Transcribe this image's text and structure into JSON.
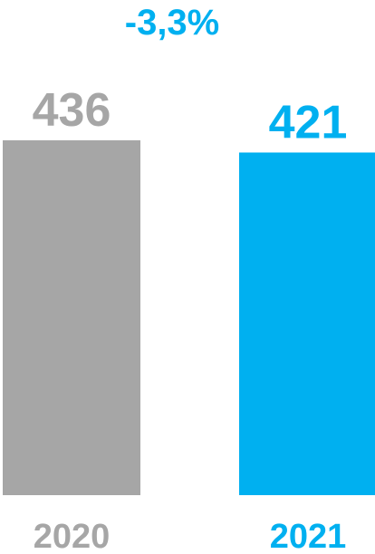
{
  "chart_data": {
    "type": "bar",
    "categories": [
      "2020",
      "2021"
    ],
    "values": [
      436,
      421
    ],
    "value_labels": [
      "436",
      "421"
    ],
    "annotation": "-3,3%",
    "colors": [
      "#a6a6a6",
      "#00b0f0"
    ],
    "title": "",
    "xlabel": "",
    "ylabel": "",
    "grid": false,
    "legend": "none"
  }
}
